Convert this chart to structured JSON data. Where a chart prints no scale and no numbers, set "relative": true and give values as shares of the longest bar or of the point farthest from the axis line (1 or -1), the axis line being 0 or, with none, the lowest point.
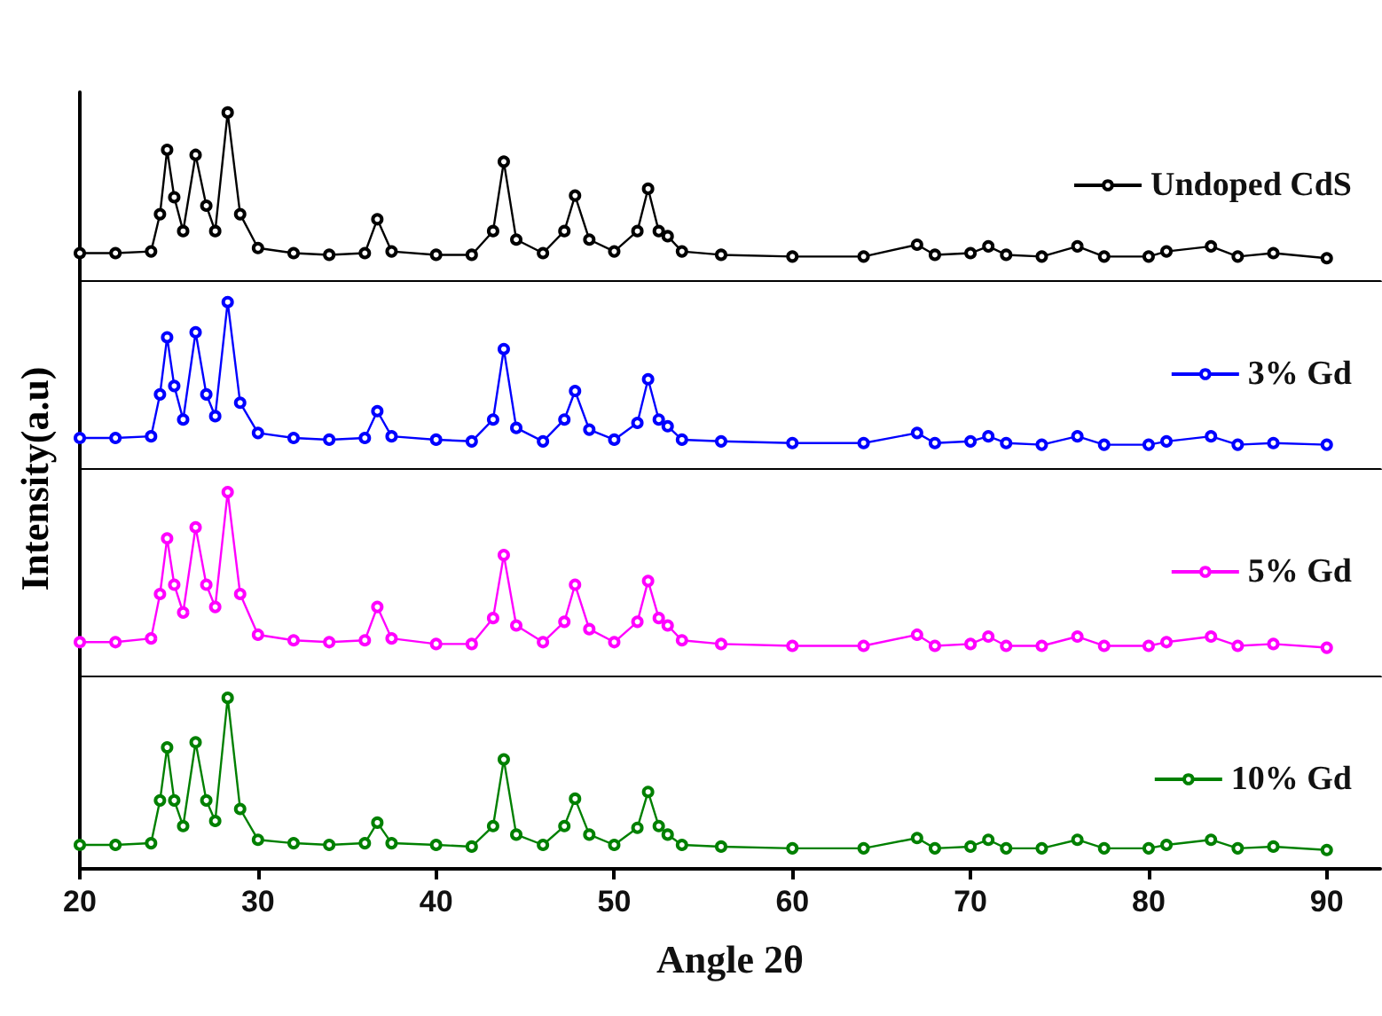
{
  "chart_data": [
    {
      "type": "line",
      "relative": true,
      "xlim": [
        20,
        93
      ],
      "xticks": [
        20,
        30,
        40,
        50,
        60,
        70,
        80,
        90
      ],
      "tick_labels": false,
      "legend": "right",
      "marker": "circle",
      "line_style": "solid",
      "ylabel": "Intensity(a.u)",
      "x": [
        20,
        22,
        24,
        24.5,
        24.9,
        25.3,
        25.8,
        26.5,
        27.1,
        27.6,
        28.3,
        29,
        30,
        32,
        34,
        36,
        36.7,
        37.5,
        40,
        42,
        43.2,
        43.8,
        44.5,
        46,
        47.2,
        47.8,
        48.6,
        50,
        51.3,
        51.9,
        52.5,
        53,
        53.8,
        56,
        60,
        64,
        67,
        68,
        70,
        71,
        72,
        74,
        76,
        77.5,
        80,
        81,
        83.5,
        85,
        87,
        90
      ],
      "series": [
        {
          "name": "Undoped CdS",
          "color": "#000000",
          "values": [
            0.17,
            0.17,
            0.18,
            0.4,
            0.78,
            0.5,
            0.3,
            0.75,
            0.45,
            0.3,
            1,
            0.4,
            0.2,
            0.17,
            0.16,
            0.17,
            0.37,
            0.18,
            0.16,
            0.16,
            0.3,
            0.71,
            0.25,
            0.17,
            0.3,
            0.51,
            0.25,
            0.18,
            0.3,
            0.55,
            0.3,
            0.27,
            0.18,
            0.16,
            0.15,
            0.15,
            0.22,
            0.16,
            0.17,
            0.21,
            0.16,
            0.15,
            0.21,
            0.15,
            0.15,
            0.18,
            0.21,
            0.15,
            0.17,
            0.14
          ]
        }
      ]
    },
    {
      "type": "line",
      "relative": true,
      "xlim": [
        20,
        93
      ],
      "xticks": [
        20,
        30,
        40,
        50,
        60,
        70,
        80,
        90
      ],
      "tick_labels": false,
      "legend": "right",
      "marker": "circle",
      "line_style": "solid",
      "x": [
        20,
        22,
        24,
        24.5,
        24.9,
        25.3,
        25.8,
        26.5,
        27.1,
        27.6,
        28.3,
        29,
        30,
        32,
        34,
        36,
        36.7,
        37.5,
        40,
        42,
        43.2,
        43.8,
        44.5,
        46,
        47.2,
        47.8,
        48.6,
        50,
        51.3,
        51.9,
        52.5,
        53,
        53.8,
        56,
        60,
        64,
        67,
        68,
        70,
        71,
        72,
        74,
        76,
        77.5,
        80,
        81,
        83.5,
        85,
        87,
        90
      ],
      "series": [
        {
          "name": "3% Gd",
          "color": "#0000ff",
          "values": [
            0.19,
            0.19,
            0.2,
            0.45,
            0.79,
            0.5,
            0.3,
            0.82,
            0.45,
            0.32,
            1,
            0.4,
            0.22,
            0.19,
            0.18,
            0.19,
            0.35,
            0.2,
            0.18,
            0.17,
            0.3,
            0.72,
            0.25,
            0.17,
            0.3,
            0.47,
            0.24,
            0.18,
            0.28,
            0.54,
            0.3,
            0.26,
            0.18,
            0.17,
            0.16,
            0.16,
            0.22,
            0.16,
            0.17,
            0.2,
            0.16,
            0.15,
            0.2,
            0.15,
            0.15,
            0.17,
            0.2,
            0.15,
            0.16,
            0.15
          ]
        }
      ]
    },
    {
      "type": "line",
      "relative": true,
      "xlim": [
        20,
        93
      ],
      "xticks": [
        20,
        30,
        40,
        50,
        60,
        70,
        80,
        90
      ],
      "tick_labels": false,
      "legend": "right",
      "marker": "circle",
      "line_style": "solid",
      "x": [
        20,
        22,
        24,
        24.5,
        24.9,
        25.3,
        25.8,
        26.5,
        27.1,
        27.6,
        28.3,
        29,
        30,
        32,
        34,
        36,
        36.7,
        37.5,
        40,
        42,
        43.2,
        43.8,
        44.5,
        46,
        47.2,
        47.8,
        48.6,
        50,
        51.3,
        51.9,
        52.5,
        53,
        53.8,
        56,
        60,
        64,
        67,
        68,
        70,
        71,
        72,
        74,
        76,
        77.5,
        80,
        81,
        83.5,
        85,
        87,
        90
      ],
      "series": [
        {
          "name": "5% Gd",
          "color": "#ff00ff",
          "values": [
            0.19,
            0.19,
            0.21,
            0.45,
            0.75,
            0.5,
            0.35,
            0.81,
            0.5,
            0.38,
            1,
            0.45,
            0.23,
            0.2,
            0.19,
            0.2,
            0.38,
            0.21,
            0.18,
            0.18,
            0.32,
            0.66,
            0.28,
            0.19,
            0.3,
            0.5,
            0.26,
            0.19,
            0.3,
            0.52,
            0.32,
            0.28,
            0.2,
            0.18,
            0.17,
            0.17,
            0.23,
            0.17,
            0.18,
            0.22,
            0.17,
            0.17,
            0.22,
            0.17,
            0.17,
            0.19,
            0.22,
            0.17,
            0.18,
            0.16
          ]
        }
      ]
    },
    {
      "type": "line",
      "relative": true,
      "xlim": [
        20,
        93
      ],
      "xticks": [
        20,
        30,
        40,
        50,
        60,
        70,
        80,
        90
      ],
      "tick_labels": "x",
      "legend": "right",
      "marker": "circle",
      "line_style": "solid",
      "xlabel": "Angle 2θ",
      "x": [
        20,
        22,
        24,
        24.5,
        24.9,
        25.3,
        25.8,
        26.5,
        27.1,
        27.6,
        28.3,
        29,
        30,
        32,
        34,
        36,
        36.7,
        37.5,
        40,
        42,
        43.2,
        43.8,
        44.5,
        46,
        47.2,
        47.8,
        48.6,
        50,
        51.3,
        51.9,
        52.5,
        53,
        53.8,
        56,
        60,
        64,
        67,
        68,
        70,
        71,
        72,
        74,
        76,
        77.5,
        80,
        81,
        83.5,
        85,
        87,
        90
      ],
      "series": [
        {
          "name": "10% Gd",
          "color": "#008000",
          "values": [
            0.14,
            0.14,
            0.15,
            0.4,
            0.71,
            0.4,
            0.25,
            0.74,
            0.4,
            0.28,
            1,
            0.35,
            0.17,
            0.15,
            0.14,
            0.15,
            0.27,
            0.15,
            0.14,
            0.13,
            0.25,
            0.64,
            0.2,
            0.14,
            0.25,
            0.41,
            0.2,
            0.14,
            0.24,
            0.45,
            0.25,
            0.2,
            0.14,
            0.13,
            0.12,
            0.12,
            0.18,
            0.12,
            0.13,
            0.17,
            0.12,
            0.12,
            0.17,
            0.12,
            0.12,
            0.14,
            0.17,
            0.12,
            0.13,
            0.11
          ]
        }
      ]
    }
  ]
}
